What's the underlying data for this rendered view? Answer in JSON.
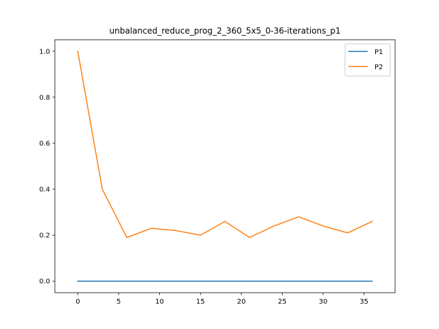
{
  "chart_data": {
    "type": "line",
    "title": "unbalanced_reduce_prog_2_360_5x5_0-36-iterations_p1",
    "xlabel": "",
    "ylabel": "",
    "xlim": [
      -2.8,
      38.8
    ],
    "ylim": [
      -0.05,
      1.05
    ],
    "xticks": [
      0,
      5,
      10,
      15,
      20,
      25,
      30,
      35
    ],
    "xtick_labels": [
      "0",
      "5",
      "10",
      "15",
      "20",
      "25",
      "30",
      "35"
    ],
    "yticks": [
      0.0,
      0.2,
      0.4,
      0.6,
      0.8,
      1.0
    ],
    "ytick_labels": [
      "0.0",
      "0.2",
      "0.4",
      "0.6",
      "0.8",
      "1.0"
    ],
    "grid": false,
    "legend_position": "top-right",
    "x": [
      0,
      3,
      6,
      9,
      12,
      15,
      18,
      21,
      24,
      27,
      30,
      33,
      36
    ],
    "series": [
      {
        "name": "P1",
        "color": "#1f77b4",
        "values": [
          0,
          0,
          0,
          0,
          0,
          0,
          0,
          0,
          0,
          0,
          0,
          0,
          0
        ]
      },
      {
        "name": "P2",
        "color": "#ff7f0e",
        "values": [
          1.0,
          0.4,
          0.19,
          0.23,
          0.22,
          0.2,
          0.26,
          0.19,
          0.24,
          0.28,
          0.24,
          0.21,
          0.26
        ]
      }
    ]
  }
}
